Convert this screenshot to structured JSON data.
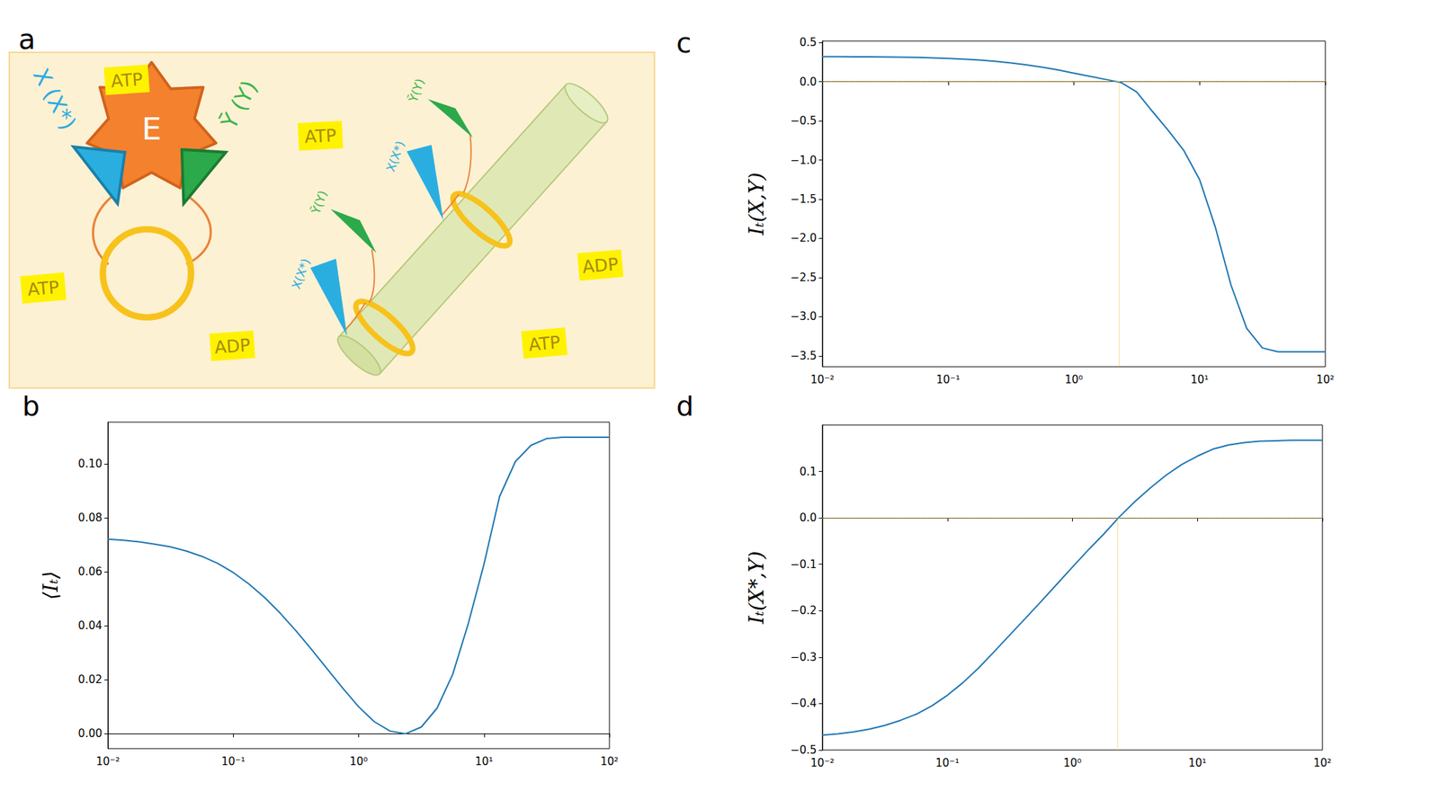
{
  "diagram": {
    "panel": "a",
    "enzyme": {
      "label": "E",
      "x_label": "X (X*)",
      "y_label": "Ȳ (Y)"
    },
    "filament_tethers": [
      {
        "x_label": "X(X*)",
        "y_label": "Ȳ(Y)"
      },
      {
        "x_label": "X(X*)",
        "y_label": "Ȳ(Y)"
      }
    ],
    "nucleotides": [
      "ATP",
      "ATP",
      "ATP",
      "ADP",
      "ADP",
      "ATP"
    ]
  },
  "chart_data": [
    {
      "panel": "b",
      "type": "line",
      "y_label": "⟨Iₜ⟩",
      "color": "#1f77b4",
      "log": "x",
      "grid": false,
      "x": [
        0.01,
        0.0133,
        0.0178,
        0.0237,
        0.0316,
        0.0422,
        0.0562,
        0.075,
        0.1,
        0.133,
        0.178,
        0.237,
        0.316,
        0.422,
        0.562,
        0.75,
        1,
        1.33,
        1.78,
        2.37,
        3.16,
        4.22,
        5.62,
        7.5,
        10,
        13.3,
        17.8,
        23.7,
        31.6,
        42.2,
        56.2,
        75,
        100
      ],
      "values": [
        0.0722,
        0.0718,
        0.0712,
        0.0703,
        0.0693,
        0.0678,
        0.0658,
        0.0632,
        0.0598,
        0.0556,
        0.0505,
        0.0447,
        0.0382,
        0.0312,
        0.024,
        0.0168,
        0.01,
        0.0045,
        0.001,
        0.0,
        0.0025,
        0.0095,
        0.022,
        0.041,
        0.063,
        0.088,
        0.101,
        0.107,
        0.1095,
        0.11,
        0.11,
        0.11,
        0.11
      ],
      "xlim": [
        0.01,
        100
      ],
      "xticks": [
        {
          "value": 0.01,
          "label": "10⁻²"
        },
        {
          "value": 0.1,
          "label": "10⁻¹"
        },
        {
          "value": 1,
          "label": "10⁰"
        },
        {
          "value": 10,
          "label": "10¹"
        },
        {
          "value": 100,
          "label": "10²"
        }
      ],
      "ylim": [
        -0.0055,
        0.1156
      ],
      "yticks": [
        {
          "value": 0,
          "label": "0.00"
        },
        0.02,
        0.04,
        0.06,
        0.08,
        {
          "value": 0.1,
          "label": "0.10"
        }
      ]
    },
    {
      "panel": "c",
      "type": "line",
      "y_label": "Iₜ(X,Y)",
      "color": "#1f77b4",
      "log": "x",
      "grid": false,
      "x": [
        0.01,
        0.0133,
        0.0178,
        0.0237,
        0.0316,
        0.0422,
        0.0562,
        0.075,
        0.1,
        0.133,
        0.178,
        0.237,
        0.316,
        0.422,
        0.562,
        0.75,
        1,
        1.33,
        1.78,
        2.37,
        3.16,
        4.22,
        5.62,
        7.5,
        10,
        13.3,
        17.8,
        23.7,
        31.6,
        42.2,
        56.2,
        75,
        100
      ],
      "values": [
        0.32,
        0.32,
        0.319,
        0.318,
        0.316,
        0.313,
        0.31,
        0.305,
        0.298,
        0.288,
        0.276,
        0.26,
        0.24,
        0.215,
        0.185,
        0.15,
        0.11,
        0.07,
        0.03,
        -0.01,
        -0.13,
        -0.38,
        -0.62,
        -0.88,
        -1.25,
        -1.85,
        -2.6,
        -3.15,
        -3.4,
        -3.45,
        -3.45,
        -3.45,
        -3.45
      ],
      "xlim": [
        0.01,
        100
      ],
      "xticks": [
        {
          "value": 0.01,
          "label": "10⁻²"
        },
        {
          "value": 0.1,
          "label": "10⁻¹"
        },
        {
          "value": 1,
          "label": "10⁰"
        },
        {
          "value": 10,
          "label": "10¹"
        },
        {
          "value": 100,
          "label": "10²"
        }
      ],
      "ylim": [
        -3.64,
        0.52
      ],
      "yticks": [
        0.5,
        {
          "value": 0,
          "label": "0.0"
        },
        {
          "value": -0.5,
          "label": "−0.5"
        },
        {
          "value": -1,
          "label": "−1.0"
        },
        {
          "value": -1.5,
          "label": "−1.5"
        },
        {
          "value": -2,
          "label": "−2.0"
        },
        {
          "value": -2.5,
          "label": "−2.5"
        },
        {
          "value": -3,
          "label": "−3.0"
        },
        {
          "value": -3.5,
          "label": "−3.5"
        }
      ],
      "reference_lines": {
        "hline": 0,
        "vline": 2.3,
        "color": "#eac435",
        "line_style": "dotted"
      }
    },
    {
      "panel": "d",
      "type": "line",
      "y_label": "Iₜ(X*,Y)",
      "color": "#1f77b4",
      "log": "x",
      "grid": false,
      "x": [
        0.01,
        0.0133,
        0.0178,
        0.0237,
        0.0316,
        0.0422,
        0.0562,
        0.075,
        0.1,
        0.133,
        0.178,
        0.237,
        0.316,
        0.422,
        0.562,
        0.75,
        1,
        1.33,
        1.78,
        2.37,
        3.16,
        4.22,
        5.62,
        7.5,
        10,
        13.3,
        17.8,
        23.7,
        31.6,
        42.2,
        56.2,
        75,
        100
      ],
      "values": [
        -0.468,
        -0.465,
        -0.461,
        -0.455,
        -0.447,
        -0.436,
        -0.423,
        -0.405,
        -0.382,
        -0.355,
        -0.323,
        -0.288,
        -0.252,
        -0.216,
        -0.18,
        -0.143,
        -0.106,
        -0.07,
        -0.035,
        0.002,
        0.035,
        0.065,
        0.092,
        0.115,
        0.133,
        0.148,
        0.157,
        0.162,
        0.165,
        0.166,
        0.167,
        0.167,
        0.167
      ],
      "xlim": [
        0.01,
        100
      ],
      "xticks": [
        {
          "value": 0.01,
          "label": "10⁻²"
        },
        {
          "value": 0.1,
          "label": "10⁻¹"
        },
        {
          "value": 1,
          "label": "10⁰"
        },
        {
          "value": 10,
          "label": "10¹"
        },
        {
          "value": 100,
          "label": "10²"
        }
      ],
      "ylim": [
        -0.5,
        0.2
      ],
      "yticks": [
        0.1,
        {
          "value": 0,
          "label": "0.0"
        },
        {
          "value": -0.1,
          "label": "−0.1"
        },
        {
          "value": -0.2,
          "label": "−0.2"
        },
        {
          "value": -0.3,
          "label": "−0.3"
        },
        {
          "value": -0.4,
          "label": "−0.4"
        },
        {
          "value": -0.5,
          "label": "−0.5"
        }
      ],
      "reference_lines": {
        "hline": 0,
        "vline": 2.3,
        "color": "#eac435",
        "line_style": "dotted"
      }
    }
  ]
}
